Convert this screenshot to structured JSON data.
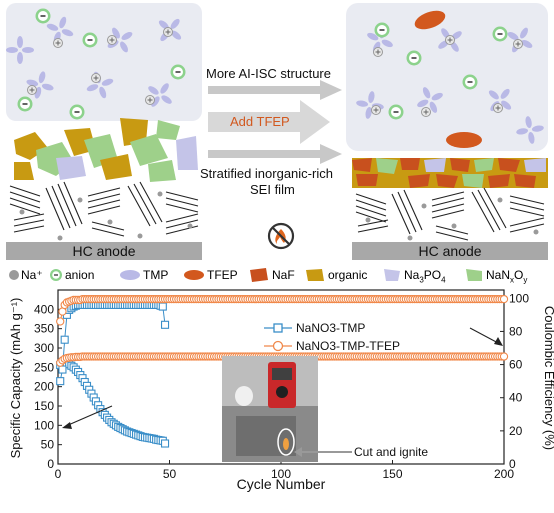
{
  "schematic": {
    "arrow_top_label": "More AI-ISC structure",
    "arrow_mid_label": "Add TFEP",
    "arrow_bottom_label_line1": "Stratified inorganic-rich",
    "arrow_bottom_label_line2": "SEI film",
    "left_anode_label": "HC anode",
    "right_anode_label": "HC anode",
    "no_fire_icon": "no-fire-icon",
    "colors": {
      "electrolyte_bg": "#e9ebf2",
      "tmp": "#b9b9e6",
      "anion": "#8cd28c",
      "tfep": "#d2581e",
      "naf": "#c8501e",
      "organic": "#c89a12",
      "na3po4": "#c4c4e8",
      "nanxoy": "#9ed08a",
      "na_plus": "#9a9a9a",
      "arrow": "#c8c8c8"
    }
  },
  "legend": {
    "na_plus": "Na⁺",
    "anion": "anion",
    "tmp": "TMP",
    "tfep": "TFEP",
    "naf": "NaF",
    "organic": "organic",
    "na3po4_base": "Na",
    "na3po4_sub1": "3",
    "na3po4_base2": "PO",
    "na3po4_sub2": "4",
    "nanxoy_base": "NaN",
    "nanxoy_sub1": "x",
    "nanxoy_base2": "O",
    "nanxoy_sub2": "y"
  },
  "photo": {
    "label": "Cut and ignite"
  },
  "chart_data": {
    "type": "scatter",
    "xlabel": "Cycle Number",
    "ylabel_left": "Specific Capacity (mAh g⁻¹)",
    "ylabel_right": "Coulombic Efficiency (%)",
    "xlim": [
      0,
      200
    ],
    "ylim_left": [
      0,
      450
    ],
    "ylim_right": [
      0,
      105
    ],
    "xticks": [
      0,
      50,
      100,
      150,
      200
    ],
    "yticks_left": [
      0,
      50,
      100,
      150,
      200,
      250,
      300,
      350,
      400
    ],
    "yticks_right": [
      0,
      20,
      40,
      60,
      80,
      100
    ],
    "legend_position": "upper-center",
    "series": [
      {
        "name": "NaNO3-TMP",
        "color": "#3a8ec8",
        "marker": "square",
        "axis": "left",
        "metric": "capacity",
        "x": [
          1,
          2,
          3,
          4,
          5,
          6,
          7,
          8,
          9,
          10,
          11,
          12,
          13,
          14,
          15,
          16,
          17,
          18,
          19,
          20,
          21,
          22,
          23,
          24,
          25,
          26,
          27,
          28,
          29,
          30,
          31,
          32,
          33,
          34,
          35,
          36,
          37,
          38,
          39,
          40,
          41,
          42,
          43,
          44,
          45,
          46,
          47,
          48
        ],
        "y": [
          256,
          262,
          266,
          262,
          258,
          254,
          250,
          244,
          238,
          230,
          222,
          212,
          202,
          192,
          182,
          172,
          162,
          152,
          142,
          134,
          127,
          120,
          114,
          108,
          104,
          100,
          96,
          93,
          90,
          87,
          84,
          82,
          80,
          78,
          76,
          74,
          72,
          70,
          69,
          68,
          67,
          66,
          65,
          63,
          62,
          61,
          60,
          53
        ]
      },
      {
        "name": "NaNO3-TMP",
        "color": "#3a8ec8",
        "marker": "square",
        "axis": "right",
        "metric": "coulombic_efficiency",
        "x": [
          1,
          2,
          3,
          4,
          5,
          6,
          7,
          8,
          9,
          10,
          11,
          12,
          13,
          14,
          15,
          16,
          17,
          18,
          19,
          20,
          21,
          22,
          23,
          24,
          25,
          26,
          27,
          28,
          29,
          30,
          31,
          32,
          33,
          34,
          35,
          36,
          37,
          38,
          39,
          40,
          41,
          42,
          43,
          44,
          45,
          46,
          47,
          48
        ],
        "y": [
          50,
          57,
          75,
          90,
          93,
          94,
          95,
          95.5,
          96,
          96,
          96,
          96,
          96,
          96,
          96,
          96,
          96,
          96,
          96,
          96,
          96,
          96,
          96,
          96,
          96,
          96,
          96,
          96,
          96,
          96,
          96,
          96,
          96,
          96,
          96,
          96,
          96,
          96,
          96,
          96,
          96,
          96,
          96,
          96,
          96,
          95.5,
          95,
          84
        ]
      },
      {
        "name": "NaNO3-TMP-TFEP",
        "color": "#f0884a",
        "marker": "circle",
        "axis": "left",
        "metric": "capacity",
        "x_start": 1,
        "x_end": 200,
        "first_values": [
          262,
          268,
          272,
          274,
          275,
          276,
          276,
          277,
          277,
          277
        ],
        "plateau": 278
      },
      {
        "name": "NaNO3-TMP-TFEP",
        "color": "#f0884a",
        "marker": "circle",
        "axis": "right",
        "metric": "coulombic_efficiency",
        "x_start": 1,
        "x_end": 200,
        "first_values": [
          86,
          92,
          96,
          97.5,
          98,
          98.5,
          99,
          99,
          99,
          99
        ],
        "plateau": 99.5
      }
    ]
  }
}
